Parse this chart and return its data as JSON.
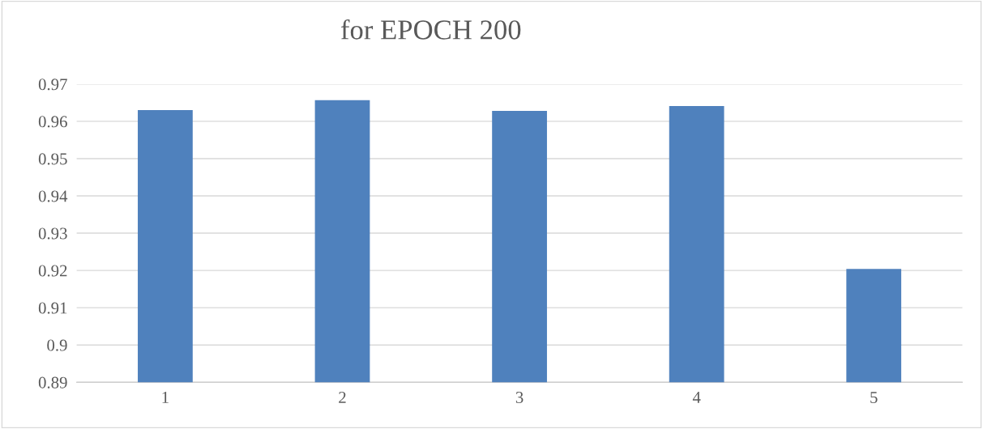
{
  "chart_data": {
    "type": "bar",
    "title": "for EPOCH 200",
    "categories": [
      "1",
      "2",
      "3",
      "4",
      "5"
    ],
    "values": [
      0.963,
      0.9657,
      0.9628,
      0.9641,
      0.9204
    ],
    "color": "#4f81bd",
    "ylim": [
      0.89,
      0.97
    ],
    "yticks": [
      0.89,
      0.9,
      0.91,
      0.92,
      0.93,
      0.94,
      0.95,
      0.96,
      0.97
    ],
    "grid": "y"
  }
}
